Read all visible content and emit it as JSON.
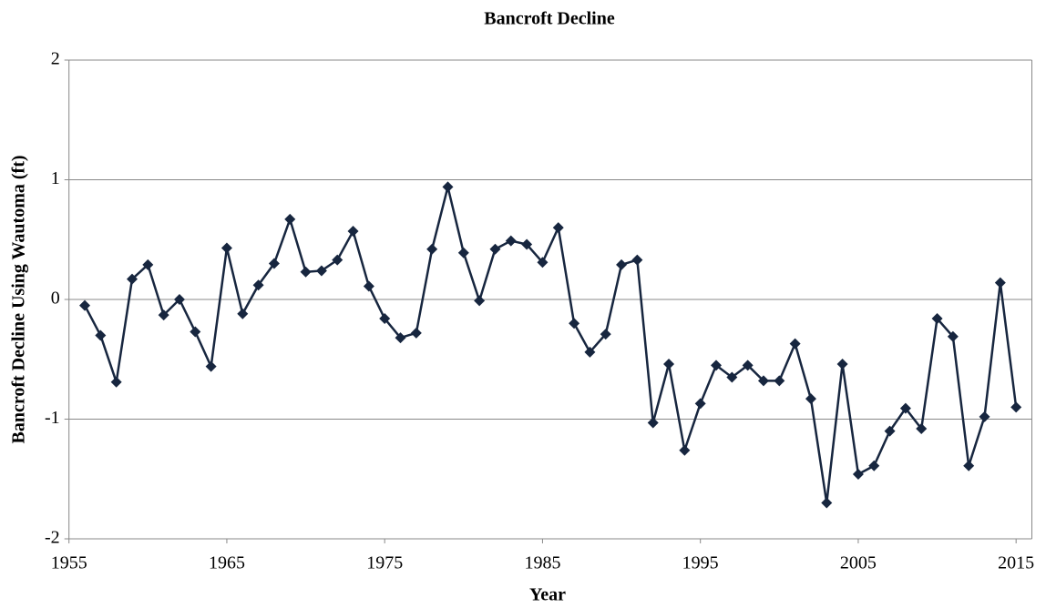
{
  "chart_data": {
    "type": "line",
    "title": "Bancroft Decline",
    "x_label": "Year",
    "y_label": "Bancroft Decline Using Wautoma (ft)",
    "x": [
      1956,
      1957,
      1958,
      1959,
      1960,
      1961,
      1962,
      1963,
      1964,
      1965,
      1966,
      1967,
      1968,
      1969,
      1970,
      1971,
      1972,
      1973,
      1974,
      1975,
      1976,
      1977,
      1978,
      1979,
      1980,
      1981,
      1982,
      1983,
      1984,
      1985,
      1986,
      1987,
      1988,
      1989,
      1990,
      1991,
      1992,
      1993,
      1994,
      1995,
      1996,
      1997,
      1998,
      1999,
      2000,
      2001,
      2002,
      2003,
      2004,
      2005,
      2006,
      2007,
      2008,
      2009,
      2010,
      2011,
      2012,
      2013,
      2014,
      2015
    ],
    "series": [
      {
        "color": "#17263f",
        "values": [
          -0.05,
          -0.3,
          -0.69,
          0.17,
          0.29,
          -0.13,
          0.0,
          -0.27,
          -0.56,
          0.43,
          -0.12,
          0.12,
          0.3,
          0.67,
          0.23,
          0.24,
          0.33,
          0.57,
          0.11,
          -0.16,
          -0.32,
          -0.28,
          0.42,
          0.94,
          0.39,
          -0.01,
          0.42,
          0.49,
          0.46,
          0.31,
          0.6,
          -0.2,
          -0.44,
          -0.29,
          0.29,
          0.33,
          -1.03,
          -0.54,
          -1.26,
          -0.87,
          -0.55,
          -0.65,
          -0.55,
          -0.68,
          -0.68,
          -0.37,
          -0.83,
          -1.7,
          -0.54,
          -1.46,
          -1.39,
          -1.1,
          -0.91,
          -1.08,
          -0.16,
          -0.31,
          -1.39,
          -0.98,
          0.14,
          -0.9
        ]
      }
    ],
    "xlim": [
      1955,
      2016
    ],
    "xticks": [
      1955,
      1965,
      1975,
      1985,
      1995,
      2005,
      2015
    ],
    "ylim": [
      -2,
      2
    ],
    "yticks": [
      -2,
      -1,
      0,
      1,
      2
    ],
    "grid": true
  }
}
